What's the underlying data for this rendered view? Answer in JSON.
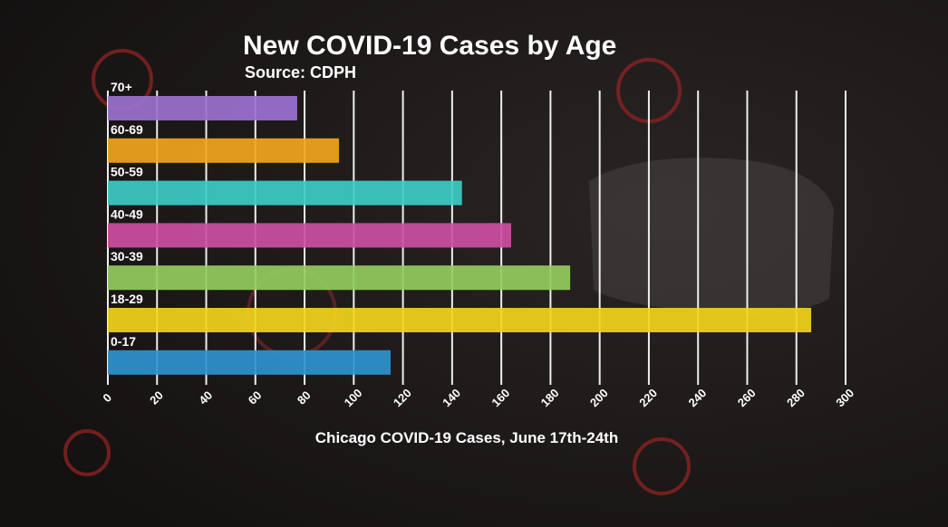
{
  "chart_data": {
    "type": "bar",
    "orientation": "horizontal",
    "title": "New COVID-19 Cases by Age",
    "subtitle": "Source: CDPH",
    "x_label": "Chicago COVID-19 Cases, June 17th-24th",
    "categories": [
      "70+",
      "60-69",
      "50-59",
      "40-49",
      "30-39",
      "18-29",
      "0-17"
    ],
    "values": [
      77,
      94,
      144,
      164,
      188,
      286,
      115
    ],
    "colors": [
      "#9b72cf",
      "#f2a51e",
      "#3ecbc6",
      "#cc4fa2",
      "#92cc5c",
      "#f2d41c",
      "#2f93cf"
    ],
    "xlim": [
      0,
      300
    ],
    "xticks": [
      0,
      20,
      40,
      60,
      80,
      100,
      120,
      140,
      160,
      180,
      200,
      220,
      240,
      260,
      280,
      300
    ],
    "grid": true
  }
}
